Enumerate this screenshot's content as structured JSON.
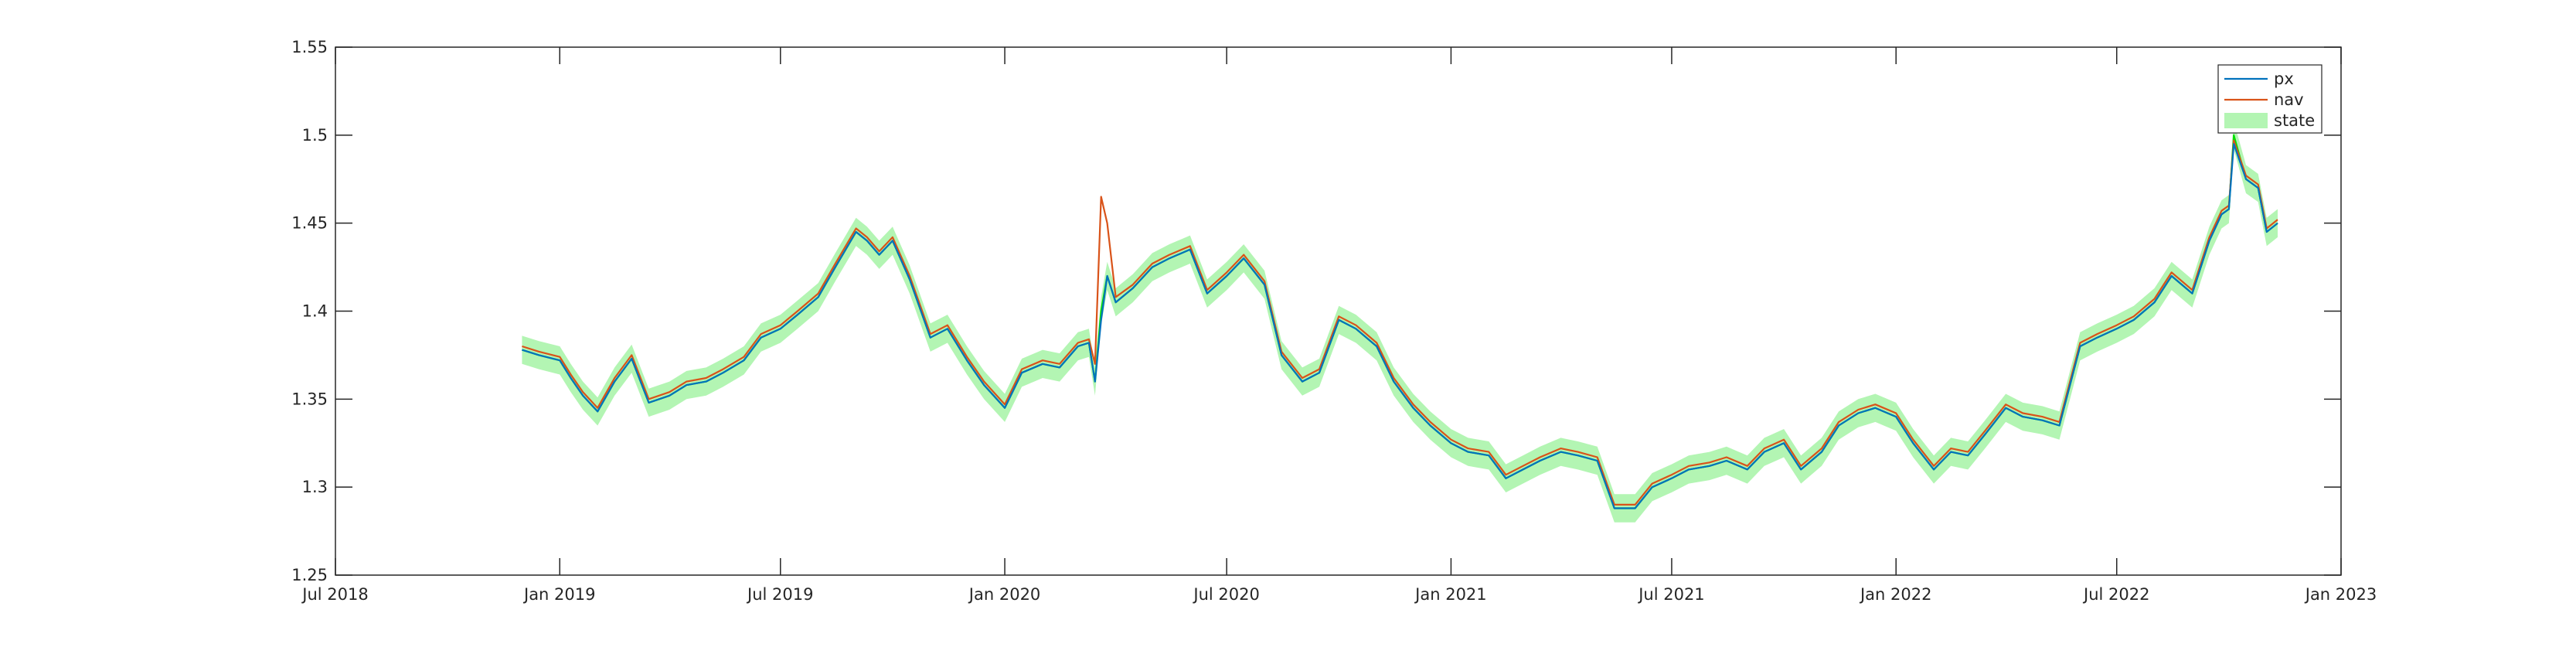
{
  "chart_data": {
    "type": "line",
    "title": "",
    "xlabel": "",
    "ylabel": "",
    "xlim": [
      "2018-07-01",
      "2023-01-01"
    ],
    "ylim": [
      1.25,
      1.55
    ],
    "grid": false,
    "legend_position": "top-right",
    "x_ticks": [
      {
        "date": "2018-07-01",
        "label": "Jul 2018"
      },
      {
        "date": "2019-01-01",
        "label": "Jan 2019"
      },
      {
        "date": "2019-07-01",
        "label": "Jul 2019"
      },
      {
        "date": "2020-01-01",
        "label": "Jan 2020"
      },
      {
        "date": "2020-07-01",
        "label": "Jul 2020"
      },
      {
        "date": "2021-01-01",
        "label": "Jan 2021"
      },
      {
        "date": "2021-07-01",
        "label": "Jul 2021"
      },
      {
        "date": "2022-01-01",
        "label": "Jan 2022"
      },
      {
        "date": "2022-07-01",
        "label": "Jul 2022"
      },
      {
        "date": "2023-01-01",
        "label": "Jan 2023"
      }
    ],
    "y_ticks": [
      {
        "value": 1.25,
        "label": "1.25"
      },
      {
        "value": 1.3,
        "label": "1.3"
      },
      {
        "value": 1.35,
        "label": "1.35"
      },
      {
        "value": 1.4,
        "label": "1.4"
      },
      {
        "value": 1.45,
        "label": "1.45"
      },
      {
        "value": 1.5,
        "label": "1.5"
      },
      {
        "value": 1.55,
        "label": "1.55"
      }
    ],
    "band_halfwidth": 0.008,
    "series": [
      {
        "name": "px",
        "kind": "line",
        "color": "#0072bd",
        "x": [
          "2018-12-01",
          "2018-12-15",
          "2019-01-01",
          "2019-01-10",
          "2019-01-20",
          "2019-02-01",
          "2019-02-15",
          "2019-03-01",
          "2019-03-15",
          "2019-04-01",
          "2019-04-15",
          "2019-05-01",
          "2019-05-15",
          "2019-06-01",
          "2019-06-15",
          "2019-07-01",
          "2019-07-15",
          "2019-08-01",
          "2019-08-15",
          "2019-09-01",
          "2019-09-10",
          "2019-09-20",
          "2019-10-01",
          "2019-10-15",
          "2019-11-01",
          "2019-11-15",
          "2019-12-01",
          "2019-12-15",
          "2020-01-01",
          "2020-01-15",
          "2020-02-01",
          "2020-02-15",
          "2020-03-01",
          "2020-03-10",
          "2020-03-15",
          "2020-03-20",
          "2020-03-25",
          "2020-04-01",
          "2020-04-15",
          "2020-05-01",
          "2020-05-15",
          "2020-06-01",
          "2020-06-15",
          "2020-07-01",
          "2020-07-15",
          "2020-08-01",
          "2020-08-15",
          "2020-09-01",
          "2020-09-15",
          "2020-10-01",
          "2020-10-15",
          "2020-11-01",
          "2020-11-15",
          "2020-12-01",
          "2020-12-15",
          "2021-01-01",
          "2021-01-15",
          "2021-02-01",
          "2021-02-15",
          "2021-03-01",
          "2021-03-15",
          "2021-04-01",
          "2021-04-15",
          "2021-05-01",
          "2021-05-15",
          "2021-06-01",
          "2021-06-15",
          "2021-07-01",
          "2021-07-15",
          "2021-08-01",
          "2021-08-15",
          "2021-09-01",
          "2021-09-15",
          "2021-10-01",
          "2021-10-15",
          "2021-11-01",
          "2021-11-15",
          "2021-12-01",
          "2021-12-15",
          "2022-01-01",
          "2022-01-15",
          "2022-02-01",
          "2022-02-15",
          "2022-03-01",
          "2022-03-15",
          "2022-04-01",
          "2022-04-15",
          "2022-05-01",
          "2022-05-15",
          "2022-06-01",
          "2022-06-15",
          "2022-07-01",
          "2022-07-15",
          "2022-08-01",
          "2022-08-15",
          "2022-09-01",
          "2022-09-15",
          "2022-09-25",
          "2022-10-01",
          "2022-10-05",
          "2022-10-15",
          "2022-10-25",
          "2022-11-01",
          "2022-11-10"
        ],
        "y": [
          1.378,
          1.375,
          1.372,
          1.362,
          1.352,
          1.343,
          1.36,
          1.373,
          1.348,
          1.352,
          1.358,
          1.36,
          1.365,
          1.372,
          1.385,
          1.39,
          1.398,
          1.408,
          1.425,
          1.445,
          1.44,
          1.432,
          1.44,
          1.418,
          1.385,
          1.39,
          1.372,
          1.358,
          1.345,
          1.365,
          1.37,
          1.368,
          1.38,
          1.382,
          1.36,
          1.395,
          1.42,
          1.405,
          1.413,
          1.425,
          1.43,
          1.435,
          1.41,
          1.42,
          1.43,
          1.415,
          1.375,
          1.36,
          1.365,
          1.395,
          1.39,
          1.38,
          1.36,
          1.345,
          1.335,
          1.325,
          1.32,
          1.318,
          1.305,
          1.31,
          1.315,
          1.32,
          1.318,
          1.315,
          1.288,
          1.288,
          1.3,
          1.305,
          1.31,
          1.312,
          1.315,
          1.31,
          1.32,
          1.325,
          1.31,
          1.32,
          1.335,
          1.342,
          1.345,
          1.34,
          1.325,
          1.31,
          1.32,
          1.318,
          1.33,
          1.345,
          1.34,
          1.338,
          1.335,
          1.38,
          1.385,
          1.39,
          1.395,
          1.405,
          1.42,
          1.41,
          1.44,
          1.455,
          1.458,
          1.495,
          1.475,
          1.47,
          1.445,
          1.45
        ]
      },
      {
        "name": "nav",
        "kind": "line",
        "color": "#d95319",
        "x": [
          "2018-12-01",
          "2018-12-15",
          "2019-01-01",
          "2019-01-10",
          "2019-01-20",
          "2019-02-01",
          "2019-02-15",
          "2019-03-01",
          "2019-03-15",
          "2019-04-01",
          "2019-04-15",
          "2019-05-01",
          "2019-05-15",
          "2019-06-01",
          "2019-06-15",
          "2019-07-01",
          "2019-07-15",
          "2019-08-01",
          "2019-08-15",
          "2019-09-01",
          "2019-09-10",
          "2019-09-20",
          "2019-10-01",
          "2019-10-15",
          "2019-11-01",
          "2019-11-15",
          "2019-12-01",
          "2019-12-15",
          "2020-01-01",
          "2020-01-15",
          "2020-02-01",
          "2020-02-15",
          "2020-03-01",
          "2020-03-10",
          "2020-03-15",
          "2020-03-20",
          "2020-03-25",
          "2020-04-01",
          "2020-04-15",
          "2020-05-01",
          "2020-05-15",
          "2020-06-01",
          "2020-06-15",
          "2020-07-01",
          "2020-07-15",
          "2020-08-01",
          "2020-08-15",
          "2020-09-01",
          "2020-09-15",
          "2020-10-01",
          "2020-10-15",
          "2020-11-01",
          "2020-11-15",
          "2020-12-01",
          "2020-12-15",
          "2021-01-01",
          "2021-01-15",
          "2021-02-01",
          "2021-02-15",
          "2021-03-01",
          "2021-03-15",
          "2021-04-01",
          "2021-04-15",
          "2021-05-01",
          "2021-05-15",
          "2021-06-01",
          "2021-06-15",
          "2021-07-01",
          "2021-07-15",
          "2021-08-01",
          "2021-08-15",
          "2021-09-01",
          "2021-09-15",
          "2021-10-01",
          "2021-10-15",
          "2021-11-01",
          "2021-11-15",
          "2021-12-01",
          "2021-12-15",
          "2022-01-01",
          "2022-01-15",
          "2022-02-01",
          "2022-02-15",
          "2022-03-01",
          "2022-03-15",
          "2022-04-01",
          "2022-04-15",
          "2022-05-01",
          "2022-05-15",
          "2022-06-01",
          "2022-06-15",
          "2022-07-01",
          "2022-07-15",
          "2022-08-01",
          "2022-08-15",
          "2022-09-01",
          "2022-09-15",
          "2022-09-25",
          "2022-10-01",
          "2022-10-05",
          "2022-10-15",
          "2022-10-25",
          "2022-11-01",
          "2022-11-10"
        ],
        "y": [
          1.38,
          1.377,
          1.374,
          1.364,
          1.354,
          1.345,
          1.362,
          1.375,
          1.35,
          1.354,
          1.36,
          1.362,
          1.367,
          1.374,
          1.387,
          1.392,
          1.4,
          1.41,
          1.427,
          1.447,
          1.442,
          1.434,
          1.442,
          1.42,
          1.387,
          1.392,
          1.374,
          1.36,
          1.347,
          1.367,
          1.372,
          1.37,
          1.382,
          1.384,
          1.37,
          1.465,
          1.45,
          1.408,
          1.415,
          1.427,
          1.432,
          1.437,
          1.412,
          1.422,
          1.432,
          1.417,
          1.377,
          1.362,
          1.367,
          1.397,
          1.392,
          1.382,
          1.362,
          1.347,
          1.337,
          1.327,
          1.322,
          1.32,
          1.307,
          1.312,
          1.317,
          1.322,
          1.32,
          1.317,
          1.29,
          1.29,
          1.302,
          1.307,
          1.312,
          1.314,
          1.317,
          1.312,
          1.322,
          1.327,
          1.312,
          1.322,
          1.337,
          1.344,
          1.347,
          1.342,
          1.327,
          1.312,
          1.322,
          1.32,
          1.332,
          1.347,
          1.342,
          1.34,
          1.337,
          1.382,
          1.387,
          1.392,
          1.397,
          1.407,
          1.422,
          1.412,
          1.442,
          1.457,
          1.46,
          1.497,
          1.477,
          1.472,
          1.447,
          1.452
        ]
      },
      {
        "name": "state",
        "kind": "band",
        "color": "#00e000",
        "fill": "#b3f5b3",
        "x": [
          "2018-12-01",
          "2018-12-15",
          "2019-01-01",
          "2019-01-10",
          "2019-01-20",
          "2019-02-01",
          "2019-02-15",
          "2019-03-01",
          "2019-03-15",
          "2019-04-01",
          "2019-04-15",
          "2019-05-01",
          "2019-05-15",
          "2019-06-01",
          "2019-06-15",
          "2019-07-01",
          "2019-07-15",
          "2019-08-01",
          "2019-08-15",
          "2019-09-01",
          "2019-09-10",
          "2019-09-20",
          "2019-10-01",
          "2019-10-15",
          "2019-11-01",
          "2019-11-15",
          "2019-12-01",
          "2019-12-15",
          "2020-01-01",
          "2020-01-15",
          "2020-02-01",
          "2020-02-15",
          "2020-03-01",
          "2020-03-10",
          "2020-03-15",
          "2020-03-20",
          "2020-03-25",
          "2020-04-01",
          "2020-04-15",
          "2020-05-01",
          "2020-05-15",
          "2020-06-01",
          "2020-06-15",
          "2020-07-01",
          "2020-07-15",
          "2020-08-01",
          "2020-08-15",
          "2020-09-01",
          "2020-09-15",
          "2020-10-01",
          "2020-10-15",
          "2020-11-01",
          "2020-11-15",
          "2020-12-01",
          "2020-12-15",
          "2021-01-01",
          "2021-01-15",
          "2021-02-01",
          "2021-02-15",
          "2021-03-01",
          "2021-03-15",
          "2021-04-01",
          "2021-04-15",
          "2021-05-01",
          "2021-05-15",
          "2021-06-01",
          "2021-06-15",
          "2021-07-01",
          "2021-07-15",
          "2021-08-01",
          "2021-08-15",
          "2021-09-01",
          "2021-09-15",
          "2021-10-01",
          "2021-10-15",
          "2021-11-01",
          "2021-11-15",
          "2021-12-01",
          "2021-12-15",
          "2022-01-01",
          "2022-01-15",
          "2022-02-01",
          "2022-02-15",
          "2022-03-01",
          "2022-03-15",
          "2022-04-01",
          "2022-04-15",
          "2022-05-01",
          "2022-05-15",
          "2022-06-01",
          "2022-06-15",
          "2022-07-01",
          "2022-07-15",
          "2022-08-01",
          "2022-08-15",
          "2022-09-01",
          "2022-09-15",
          "2022-09-25",
          "2022-10-01",
          "2022-10-05",
          "2022-10-15",
          "2022-10-25",
          "2022-11-01",
          "2022-11-10"
        ],
        "y": [
          1.378,
          1.375,
          1.372,
          1.362,
          1.352,
          1.343,
          1.36,
          1.373,
          1.348,
          1.352,
          1.358,
          1.36,
          1.365,
          1.372,
          1.385,
          1.39,
          1.398,
          1.408,
          1.425,
          1.445,
          1.44,
          1.432,
          1.44,
          1.418,
          1.385,
          1.39,
          1.372,
          1.358,
          1.345,
          1.365,
          1.37,
          1.368,
          1.38,
          1.382,
          1.36,
          1.4,
          1.42,
          1.405,
          1.413,
          1.425,
          1.43,
          1.435,
          1.41,
          1.42,
          1.43,
          1.415,
          1.375,
          1.36,
          1.365,
          1.395,
          1.39,
          1.38,
          1.36,
          1.345,
          1.335,
          1.325,
          1.32,
          1.318,
          1.305,
          1.31,
          1.315,
          1.32,
          1.318,
          1.315,
          1.288,
          1.288,
          1.3,
          1.305,
          1.31,
          1.312,
          1.315,
          1.31,
          1.32,
          1.325,
          1.31,
          1.32,
          1.335,
          1.342,
          1.345,
          1.34,
          1.325,
          1.31,
          1.32,
          1.318,
          1.33,
          1.345,
          1.34,
          1.338,
          1.335,
          1.38,
          1.385,
          1.39,
          1.395,
          1.405,
          1.42,
          1.41,
          1.44,
          1.455,
          1.458,
          1.5,
          1.475,
          1.47,
          1.445,
          1.45
        ]
      }
    ]
  }
}
